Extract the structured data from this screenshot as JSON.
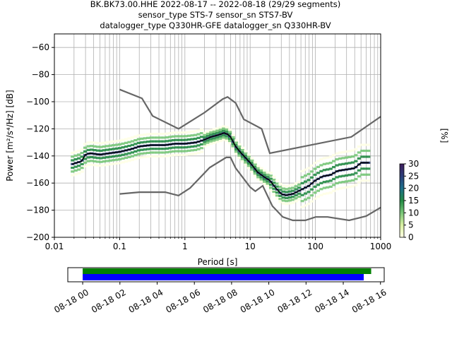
{
  "title_lines": [
    "BK.BK73.00.HHE   2022-08-17 -- 2022-08-18  (29/29 segments)",
    "sensor_type STS-7 sensor_sn STS7-BV",
    "datalogger_type Q330HR-GFE datalogger_sn Q330HR-BV"
  ],
  "colors": {
    "mean_line": "#000000",
    "model_curves": "#666666",
    "grid": "#b0b0b0",
    "bar_green": "#008000",
    "bar_blue": "#0000ff",
    "colormap": [
      "#ffffe5",
      "#d9f0a3",
      "#78c679",
      "#238b45",
      "#1d6f8a",
      "#2c3e7a",
      "#3f1d5c"
    ]
  },
  "chart_data": [
    {
      "type": "heatmap",
      "subtype": "probabilistic_power_spectral_density",
      "xlabel": "Period [s]",
      "ylabel": "Power [m²/s⁴/Hz] [dB]",
      "x_scale": "log",
      "xlim": [
        0.01,
        1000
      ],
      "ylim": [
        -200,
        -50
      ],
      "x_ticks": [
        {
          "value": 0.01,
          "label": "0.01"
        },
        {
          "value": 0.1,
          "label": "0.1"
        },
        {
          "value": 1,
          "label": "1"
        },
        {
          "value": 10,
          "label": "10"
        },
        {
          "value": 100,
          "label": "100"
        },
        {
          "value": 1000,
          "label": "1000"
        }
      ],
      "y_ticks": [
        -60,
        -80,
        -100,
        -120,
        -140,
        -160,
        -180,
        -200
      ],
      "grid": true,
      "colorbar": {
        "label": "[%]",
        "ticks": [
          0,
          5,
          10,
          15,
          20,
          25,
          30
        ],
        "range": [
          0,
          30
        ]
      },
      "mean_curve": [
        [
          0.019,
          -146
        ],
        [
          0.022,
          -145
        ],
        [
          0.026,
          -144
        ],
        [
          0.03,
          -139
        ],
        [
          0.035,
          -138
        ],
        [
          0.05,
          -139
        ],
        [
          0.07,
          -138
        ],
        [
          0.1,
          -137
        ],
        [
          0.15,
          -135
        ],
        [
          0.2,
          -133
        ],
        [
          0.3,
          -132
        ],
        [
          0.5,
          -132
        ],
        [
          0.7,
          -131
        ],
        [
          1.0,
          -131
        ],
        [
          1.5,
          -130
        ],
        [
          2.0,
          -128
        ],
        [
          2.5,
          -126
        ],
        [
          3.0,
          -125
        ],
        [
          3.5,
          -124
        ],
        [
          4.0,
          -123
        ],
        [
          4.5,
          -124
        ],
        [
          5.0,
          -126
        ],
        [
          6.0,
          -133
        ],
        [
          7.0,
          -137
        ],
        [
          8.0,
          -140
        ],
        [
          10,
          -145
        ],
        [
          13,
          -152
        ],
        [
          17,
          -156
        ],
        [
          20,
          -158
        ],
        [
          25,
          -164
        ],
        [
          30,
          -168
        ],
        [
          35,
          -169
        ],
        [
          45,
          -168
        ],
        [
          60,
          -165
        ],
        [
          80,
          -162
        ],
        [
          100,
          -158
        ],
        [
          130,
          -155
        ],
        [
          170,
          -154
        ],
        [
          220,
          -151
        ],
        [
          300,
          -150
        ],
        [
          400,
          -149
        ],
        [
          500,
          -145
        ],
        [
          650,
          -145
        ]
      ],
      "model_curves": [
        {
          "role": "high_noise_model",
          "points": [
            [
              0.1,
              -91
            ],
            [
              0.22,
              -97.5
            ],
            [
              0.32,
              -110.5
            ],
            [
              0.8,
              -120
            ],
            [
              2.0,
              -108
            ],
            [
              3.8,
              -98
            ],
            [
              4.5,
              -96.5
            ],
            [
              6.0,
              -101
            ],
            [
              8.0,
              -113
            ],
            [
              15.0,
              -120
            ],
            [
              20.0,
              -138
            ],
            [
              354.8,
              -126
            ],
            [
              1000,
              -111
            ]
          ]
        },
        {
          "role": "low_noise_model",
          "points": [
            [
              0.1,
              -168
            ],
            [
              0.2,
              -166.7
            ],
            [
              0.5,
              -166.7
            ],
            [
              0.8,
              -169.2
            ],
            [
              1.2,
              -163.7
            ],
            [
              2.4,
              -148.6
            ],
            [
              4.3,
              -141.1
            ],
            [
              5.0,
              -141.1
            ],
            [
              6.0,
              -149
            ],
            [
              10.0,
              -163
            ],
            [
              12.0,
              -166
            ],
            [
              15.6,
              -162
            ],
            [
              21.9,
              -177
            ],
            [
              31.6,
              -185
            ],
            [
              45.0,
              -187.5
            ],
            [
              70.0,
              -187.5
            ],
            [
              101.0,
              -185
            ],
            [
              154.0,
              -185
            ],
            [
              328.0,
              -187.5
            ],
            [
              600.0,
              -184.4
            ],
            [
              1000,
              -178
            ]
          ]
        }
      ]
    },
    {
      "type": "bar",
      "subtype": "data_availability_timeline",
      "x_ticks": [
        "08-18 00",
        "08-18 02",
        "08-18 04",
        "08-18 06",
        "08-18 08",
        "08-18 10",
        "08-18 12",
        "08-18 14",
        "08-18 16"
      ],
      "x_tick_hours": [
        0,
        2,
        4,
        6,
        8,
        10,
        12,
        14,
        16
      ],
      "xlim_hours": [
        -0.8,
        16.2
      ],
      "bars": [
        {
          "color": "green",
          "start_hour": 0,
          "end_hour": 15.5
        },
        {
          "color": "blue",
          "start_hour": 0,
          "end_hour": 15.1
        }
      ]
    }
  ]
}
